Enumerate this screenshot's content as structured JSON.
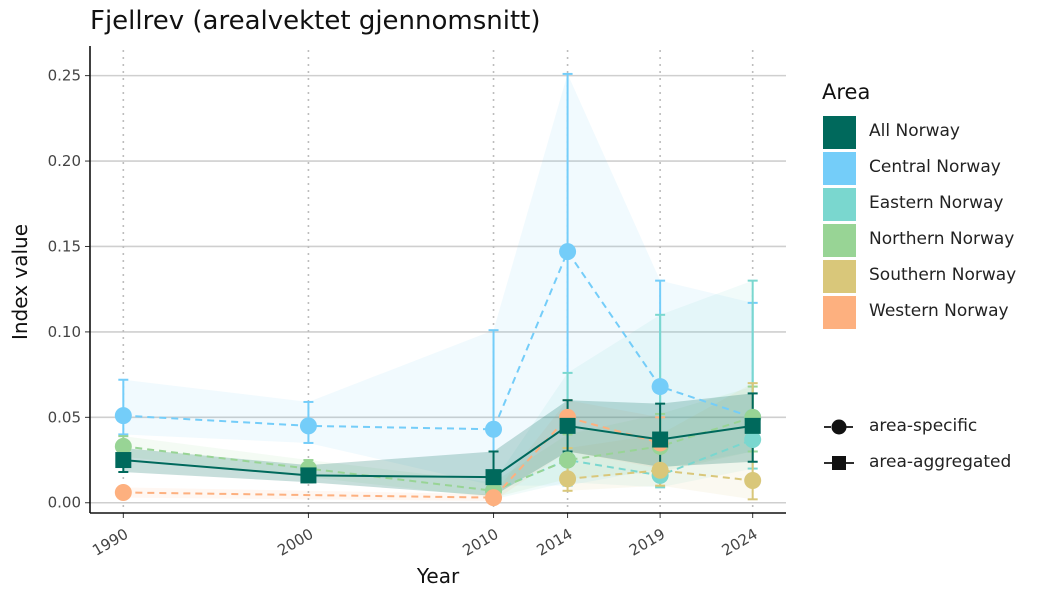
{
  "chart_data": {
    "type": "line",
    "title": "Fjellrev (arealvektet gjennomsnitt)",
    "xlabel": "Year",
    "ylabel": "Index value",
    "x": [
      1990,
      2000,
      2010,
      2014,
      2019,
      2024
    ],
    "yticks": [
      "0.00",
      "0.05",
      "0.10",
      "0.15",
      "0.20",
      "0.25"
    ],
    "ylim": [
      -0.006,
      0.265
    ],
    "grid": "horizontal major lines, dotted vertical at data years",
    "legend_title": "Area",
    "legend_position": "right",
    "series": [
      {
        "name": "All Norway",
        "color": "#00695c",
        "style": "area-aggregated",
        "values": [
          0.025,
          0.016,
          0.015,
          0.045,
          0.037,
          0.045
        ],
        "lower": [
          0.018,
          0.012,
          0.004,
          0.03,
          0.021,
          0.024
        ],
        "upper": [
          0.032,
          0.022,
          0.03,
          0.06,
          0.058,
          0.064
        ]
      },
      {
        "name": "Central Norway",
        "color": "#74cdf9",
        "style": "area-specific",
        "values": [
          0.051,
          0.045,
          0.043,
          0.147,
          0.068,
          0.05
        ],
        "lower": [
          0.04,
          0.035,
          0.01,
          0.01,
          0.02,
          0.03
        ],
        "upper": [
          0.072,
          0.059,
          0.101,
          0.251,
          0.13,
          0.117
        ]
      },
      {
        "name": "Eastern Norway",
        "color": "#7ad7cf",
        "style": "area-specific",
        "values": [
          null,
          null,
          0.007,
          0.025,
          0.016,
          0.037
        ],
        "lower": [
          null,
          null,
          0.002,
          0.012,
          0.009,
          0.02
        ],
        "upper": [
          null,
          null,
          0.012,
          0.076,
          0.11,
          0.13
        ]
      },
      {
        "name": "Northern Norway",
        "color": "#98d495",
        "style": "area-specific",
        "values": [
          0.033,
          0.02,
          0.007,
          0.025,
          0.033,
          0.05
        ],
        "lower": [
          0.027,
          0.015,
          0.003,
          0.014,
          0.018,
          0.03
        ],
        "upper": [
          0.039,
          0.025,
          0.012,
          0.04,
          0.052,
          0.068
        ]
      },
      {
        "name": "Southern Norway",
        "color": "#d9c77a",
        "style": "area-specific",
        "values": [
          null,
          null,
          null,
          0.014,
          0.019,
          0.013
        ],
        "lower": [
          null,
          null,
          null,
          0.007,
          0.01,
          0.002
        ],
        "upper": [
          null,
          null,
          null,
          0.032,
          0.04,
          0.07
        ]
      },
      {
        "name": "Western Norway",
        "color": "#fdb07f",
        "style": "area-specific",
        "values": [
          0.006,
          null,
          0.003,
          0.05,
          0.035,
          null
        ],
        "lower": [
          0.003,
          null,
          0.001,
          0.03,
          0.02,
          null
        ],
        "upper": [
          0.009,
          null,
          0.005,
          0.06,
          0.05,
          null
        ]
      }
    ],
    "shape_legend": [
      "area-specific",
      "area-aggregated"
    ]
  }
}
